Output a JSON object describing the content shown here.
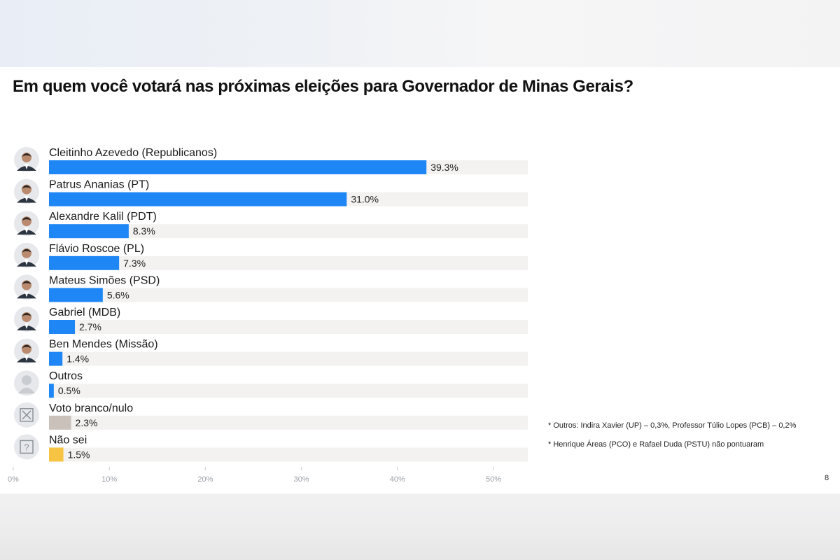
{
  "title": "Em quem você votará nas próximas eleições para Governador de Minas Gerais?",
  "notes": [
    "* Outros: Indira Xavier (UP) – 0,3%, Professor Túlio Lopes (PCB) – 0,2%",
    "* Henrique Áreas (PCO) e Rafael Duda (PSTU) não pontuaram"
  ],
  "page_number": "8",
  "colors": {
    "candidate": "#1f87f5",
    "blank_null": "#cbc1bb",
    "dont_know": "#f6c343",
    "track": "#f3f2f1",
    "tick_label": "#9aa0a8",
    "value_label": "#222222",
    "category_label": "#1a1a1a"
  },
  "chart_data": {
    "type": "bar",
    "orientation": "horizontal",
    "title": "Em quem você votará nas próximas eleições para Governador de Minas Gerais?",
    "xlabel": "",
    "ylabel": "",
    "xlim": [
      0,
      50
    ],
    "x_ticks": [
      "0%",
      "10%",
      "20%",
      "30%",
      "40%",
      "50%"
    ],
    "x_tick_values": [
      0,
      10,
      20,
      30,
      40,
      50
    ],
    "grid": false,
    "legend": "none",
    "categories": [
      "Cleitinho Azevedo (Republicanos)",
      "Patrus Ananias (PT)",
      "Alexandre Kalil (PDT)",
      "Flávio Roscoe (PL)",
      "Mateus Simões (PSD)",
      "Gabriel (MDB)",
      "Ben Mendes (Missão)",
      "Outros",
      "Voto branco/nulo",
      "Não sei"
    ],
    "values": [
      39.3,
      31.0,
      8.3,
      7.3,
      5.6,
      2.7,
      1.4,
      0.5,
      2.3,
      1.5
    ],
    "value_labels": [
      "39.3%",
      "31.0%",
      "8.3%",
      "7.3%",
      "5.6%",
      "2.7%",
      "1.4%",
      "0.5%",
      "2.3%",
      "1.5%"
    ],
    "bar_colors": [
      "#1f87f5",
      "#1f87f5",
      "#1f87f5",
      "#1f87f5",
      "#1f87f5",
      "#1f87f5",
      "#1f87f5",
      "#1f87f5",
      "#cbc1bb",
      "#f6c343"
    ],
    "icons": [
      "candidate-photo-icon",
      "candidate-photo-icon",
      "candidate-photo-icon",
      "candidate-photo-icon",
      "candidate-photo-icon",
      "candidate-photo-icon",
      "candidate-photo-icon",
      "person-silhouette-icon",
      "x-box-icon",
      "question-box-icon"
    ]
  }
}
